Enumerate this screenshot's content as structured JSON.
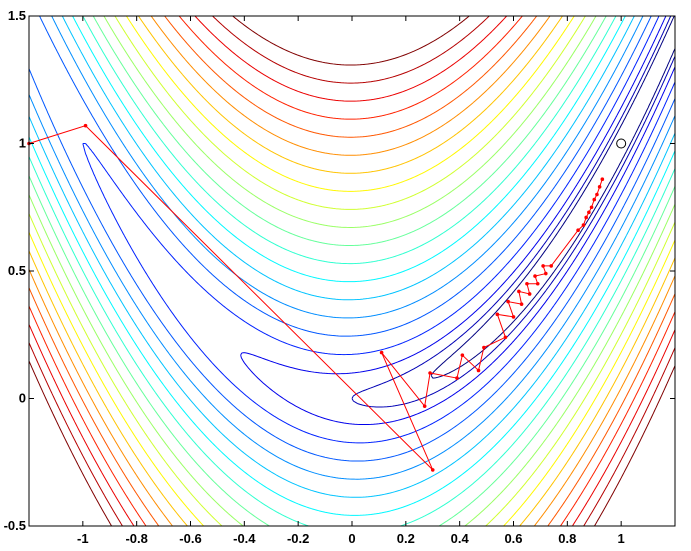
{
  "chart_data": {
    "type": "contour",
    "title": "",
    "xlabel": "",
    "ylabel": "",
    "xlim": [
      -1.2,
      1.2
    ],
    "ylim": [
      -0.5,
      1.5
    ],
    "x_ticks": [
      -1,
      -0.8,
      -0.6,
      -0.4,
      -0.2,
      0,
      0.2,
      0.4,
      0.6,
      0.8,
      1
    ],
    "x_tick_labels": [
      "-1",
      "-0.8",
      "-0.6",
      "-0.4",
      "-0.2",
      "0",
      "0.2",
      "0.4",
      "0.6",
      "0.8",
      "1"
    ],
    "y_ticks": [
      -0.5,
      0,
      0.5,
      1,
      1.5
    ],
    "y_tick_labels": [
      "-0.5",
      "0",
      "0.5",
      "1",
      "1.5"
    ],
    "grid": false,
    "colormap": "jet",
    "function": "Rosenbrock: (1 - x)^2 + 100 (y - x^2)^2",
    "contour_levels": [
      0.5,
      1,
      2,
      4,
      7,
      11,
      16,
      22,
      29,
      37,
      46,
      56,
      67,
      79,
      92,
      106,
      121,
      137,
      154,
      172
    ],
    "minimum_marker": {
      "x": 1,
      "y": 1,
      "marker": "open-circle",
      "color": "#000000"
    },
    "path_color": "#ff0000",
    "series": [
      {
        "values": [
          {
            "x": -1.2,
            "y": 1.0
          },
          {
            "x": -0.99,
            "y": 1.07
          },
          {
            "x": 0.3,
            "y": -0.28
          },
          {
            "x": 0.11,
            "y": 0.18
          },
          {
            "x": 0.27,
            "y": -0.03
          },
          {
            "x": 0.29,
            "y": 0.1
          },
          {
            "x": 0.39,
            "y": 0.08
          },
          {
            "x": 0.41,
            "y": 0.17
          },
          {
            "x": 0.47,
            "y": 0.11
          },
          {
            "x": 0.49,
            "y": 0.2
          },
          {
            "x": 0.57,
            "y": 0.24
          },
          {
            "x": 0.54,
            "y": 0.33
          },
          {
            "x": 0.6,
            "y": 0.32
          },
          {
            "x": 0.58,
            "y": 0.38
          },
          {
            "x": 0.63,
            "y": 0.37
          },
          {
            "x": 0.62,
            "y": 0.42
          },
          {
            "x": 0.66,
            "y": 0.41
          },
          {
            "x": 0.65,
            "y": 0.45
          },
          {
            "x": 0.69,
            "y": 0.45
          },
          {
            "x": 0.68,
            "y": 0.48
          },
          {
            "x": 0.72,
            "y": 0.49
          },
          {
            "x": 0.71,
            "y": 0.52
          },
          {
            "x": 0.74,
            "y": 0.52
          },
          {
            "x": 0.84,
            "y": 0.66
          },
          {
            "x": 0.86,
            "y": 0.68
          },
          {
            "x": 0.87,
            "y": 0.71
          },
          {
            "x": 0.88,
            "y": 0.73
          },
          {
            "x": 0.89,
            "y": 0.75
          },
          {
            "x": 0.9,
            "y": 0.78
          },
          {
            "x": 0.91,
            "y": 0.8
          },
          {
            "x": 0.92,
            "y": 0.83
          },
          {
            "x": 0.93,
            "y": 0.86
          }
        ]
      }
    ]
  }
}
